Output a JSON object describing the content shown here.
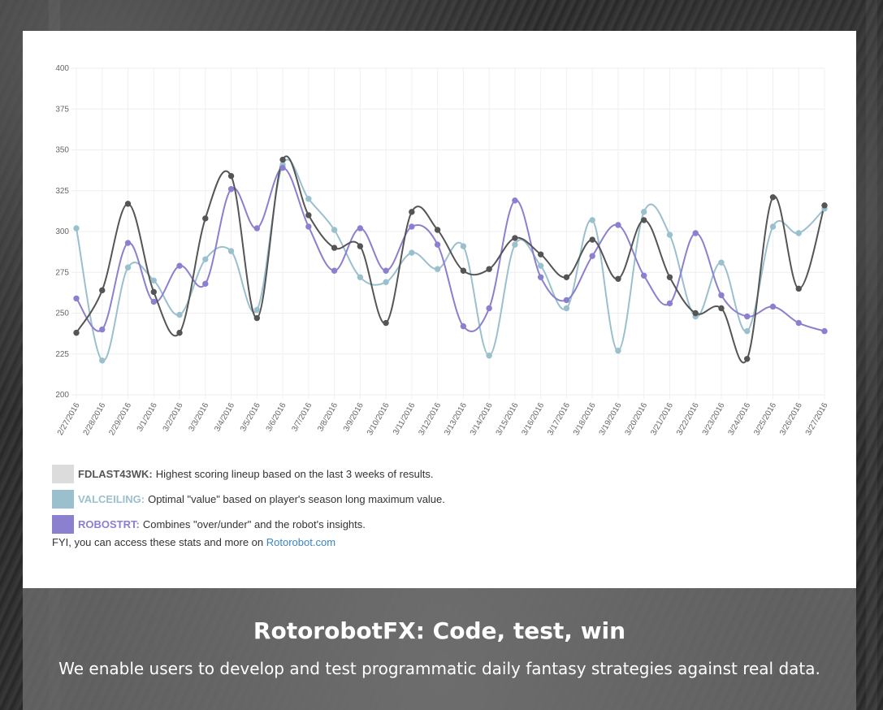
{
  "colors": {
    "fdlast": "#555555",
    "valceiling": "#9ac0cd",
    "robostrt": "#8a80cf",
    "fdlast_swatch": "#dcdcdc",
    "valceiling_swatch": "#9ac0cd",
    "robostrt_swatch": "#8a80cf",
    "link": "#3b84c4"
  },
  "legend": [
    {
      "key": "FDLAST43WK:",
      "text": "Highest scoring lineup based on the last 3 weeks of results."
    },
    {
      "key": "VALCEILING:",
      "text": "Optimal \"value\" based on player's season long maximum value."
    },
    {
      "key": "ROBOSTRT:",
      "text": "Combines \"over/under\" and the robot's insights."
    }
  ],
  "fyi": {
    "prefix": "FYI, you can access these stats and more on",
    "link": "Rotorobot.com"
  },
  "hero": {
    "title": "RotorobotFX: Code, test, win",
    "subtitle": "We enable users to develop and test programmatic daily fantasy strategies against real data."
  },
  "chart_data": {
    "type": "line",
    "title": "",
    "xlabel": "",
    "ylabel": "",
    "ylim": [
      200,
      400
    ],
    "yticks": [
      200,
      225,
      250,
      275,
      300,
      325,
      350,
      375,
      400
    ],
    "grid": true,
    "categories": [
      "2/27/2016",
      "2/28/2016",
      "2/29/2016",
      "3/1/2016",
      "3/2/2016",
      "3/3/2016",
      "3/4/2016",
      "3/5/2016",
      "3/6/2016",
      "3/7/2016",
      "3/8/2016",
      "3/9/2016",
      "3/10/2016",
      "3/11/2016",
      "3/12/2016",
      "3/13/2016",
      "3/14/2016",
      "3/15/2016",
      "3/16/2016",
      "3/17/2016",
      "3/18/2016",
      "3/19/2016",
      "3/20/2016",
      "3/21/2016",
      "3/22/2016",
      "3/23/2016",
      "3/24/2016",
      "3/25/2016",
      "3/26/2016",
      "3/27/2016"
    ],
    "series": [
      {
        "name": "FDLAST43WK",
        "color": "#555555",
        "values": [
          238,
          264,
          317,
          263,
          238,
          308,
          334,
          247,
          344,
          310,
          290,
          291,
          244,
          312,
          301,
          276,
          277,
          296,
          286,
          272,
          295,
          271,
          307,
          272,
          250,
          253,
          222,
          321,
          265,
          316
        ]
      },
      {
        "name": "VALCEILING",
        "color": "#9ac0cd",
        "values": [
          302,
          221,
          278,
          270,
          249,
          283,
          288,
          252,
          341,
          320,
          301,
          272,
          269,
          287,
          277,
          291,
          224,
          292,
          279,
          253,
          307,
          227,
          312,
          298,
          248,
          281,
          239,
          303,
          299,
          314
        ]
      },
      {
        "name": "ROBOSTRT",
        "color": "#8a80cf",
        "values": [
          259,
          240,
          293,
          257,
          279,
          268,
          326,
          302,
          339,
          303,
          276,
          302,
          276,
          303,
          292,
          242,
          253,
          319,
          272,
          258,
          285,
          304,
          273,
          256,
          299,
          261,
          248,
          254,
          244,
          239
        ]
      }
    ]
  }
}
